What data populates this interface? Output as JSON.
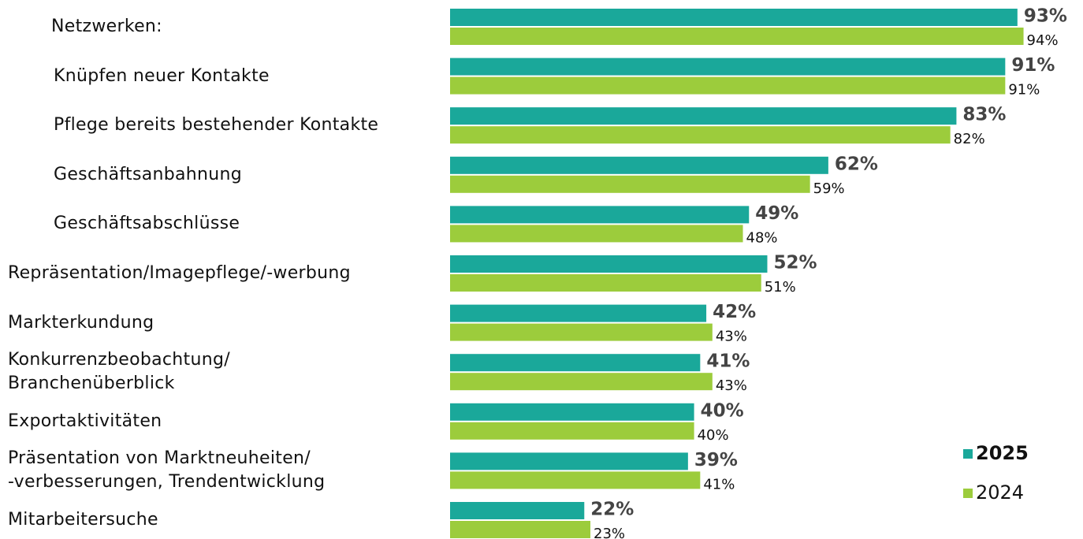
{
  "chart_data": {
    "type": "bar",
    "orientation": "horizontal",
    "categories": [
      "Netzwerken:",
      "Knüpfen neuer Kontakte",
      "Pflege bereits bestehender Kontakte",
      "Geschäftsanbahnung",
      "Geschäftsabschlüsse",
      "Repräsentation/Imagepflege/-werbung",
      "Markterkundung",
      "Konkurrenzbeobachtung/\nBranchenüberblick",
      "Exportaktivitäten",
      "Präsentation von Marktneuheiten/\n-verbesserungen, Trendentwicklung",
      "Mitarbeitersuche"
    ],
    "series": [
      {
        "name": "2025",
        "color": "#1aa89a",
        "values": [
          93,
          91,
          83,
          62,
          49,
          52,
          42,
          41,
          40,
          39,
          22
        ],
        "value_labels": [
          "93%",
          "91%",
          "83%",
          "62%",
          "49%",
          "52%",
          "42%",
          "41%",
          "40%",
          "39%",
          "22%"
        ]
      },
      {
        "name": "2024",
        "color": "#9ccc3c",
        "values": [
          94,
          91,
          82,
          59,
          48,
          51,
          43,
          43,
          40,
          41,
          23
        ],
        "value_labels": [
          "94%",
          "91%",
          "82%",
          "59%",
          "48%",
          "51%",
          "43%",
          "43%",
          "40%",
          "41%",
          "23%"
        ]
      }
    ],
    "xlim": [
      0,
      100
    ],
    "legend": "lower right"
  }
}
